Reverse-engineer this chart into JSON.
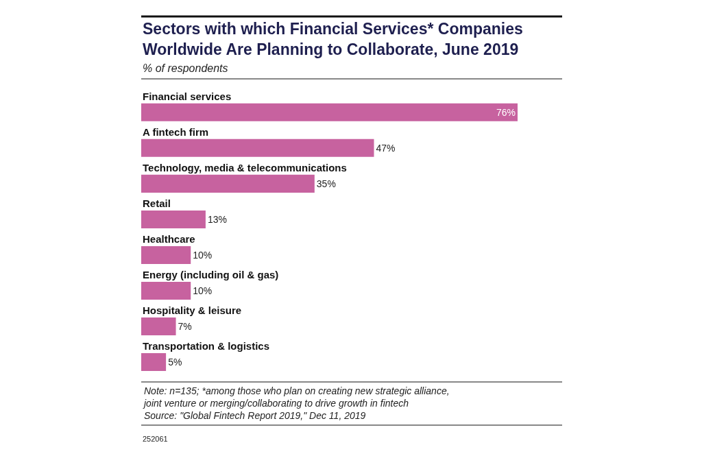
{
  "chart_data": {
    "type": "bar",
    "orientation": "horizontal",
    "title": "Sectors with which Financial Services* Companies\nWorldwide Are Planning to Collaborate, June 2019",
    "subtitle": "% of respondents",
    "categories": [
      "Financial services",
      "A fintech firm",
      "Technology, media & telecommunications",
      "Retail",
      "Healthcare",
      "Energy (including oil & gas)",
      "Hospitality & leisure",
      "Transportation & logistics"
    ],
    "values": [
      76,
      47,
      35,
      13,
      10,
      10,
      7,
      5
    ],
    "value_labels": [
      "76%",
      "47%",
      "35%",
      "13%",
      "10%",
      "10%",
      "7%",
      "5%"
    ],
    "color": "#c7629f",
    "xlim": [
      0,
      85
    ],
    "annotations": [
      "Note: n=135; *among those who plan on creating new strategic alliance,\njoint venture or merging/collaborating to drive growth in fintech\nSource: \"Global Fintech Report 2019,\" Dec 11, 2019",
      "252061"
    ],
    "legend": false
  }
}
